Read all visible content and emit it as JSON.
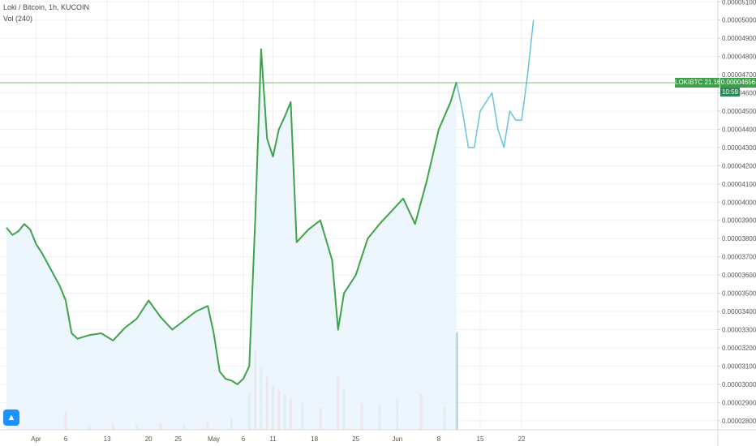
{
  "header": {
    "title": "Loki / Bitcoin, 1h, KUCOIN",
    "volume_label": "Vol (240)"
  },
  "price_badge": {
    "symbol": "LOKIBTC",
    "change": "21.16%",
    "price": "0.00004656",
    "countdown": "10:59"
  },
  "icons": {
    "logo": "tradingview-logo-icon"
  },
  "colors": {
    "price_line": "#3ea34a",
    "forecast_line": "#67c4da",
    "area_fill": "#eaf4fb",
    "grid": "#eef0f3",
    "vol_up": "#63bfa8",
    "vol_down": "#ef7a78",
    "badge_bg": "#3e9f49"
  },
  "chart_data": {
    "type": "line",
    "title": "Loki / Bitcoin, 1h, KUCOIN",
    "xlabel": "",
    "ylabel": "",
    "ylim": [
      2.75e-05,
      5.11e-05
    ],
    "x_ticks": [
      "Apr",
      "6",
      "13",
      "20",
      "25",
      "May",
      "6",
      "11",
      "18",
      "25",
      "Jun",
      "8",
      "15",
      "22"
    ],
    "y_ticks": [
      "0.00005100",
      "0.00005000",
      "0.00004900",
      "0.00004800",
      "0.00004700",
      "0.00004600",
      "0.00004500",
      "0.00004400",
      "0.00004300",
      "0.00004200",
      "0.00004100",
      "0.00004000",
      "0.00003900",
      "0.00003800",
      "0.00003700",
      "0.00003600",
      "0.00003500",
      "0.00003400",
      "0.00003300",
      "0.00003200",
      "0.00003100",
      "0.00003000",
      "0.00002900",
      "0.00002800"
    ],
    "last_price": 4.656e-05,
    "series": [
      {
        "name": "",
        "x": [
          "Mar 27",
          "Mar 28",
          "Mar 29",
          "Mar 30",
          "Mar 31",
          "Apr 1",
          "Apr 2",
          "Apr 3",
          "Apr 4",
          "Apr 5",
          "Apr 6",
          "Apr 7",
          "Apr 8",
          "Apr 10",
          "Apr 12",
          "Apr 14",
          "Apr 16",
          "Apr 18",
          "Apr 20",
          "Apr 22",
          "Apr 24",
          "Apr 26",
          "Apr 28",
          "Apr 30",
          "May 1",
          "May 2",
          "May 3",
          "May 4",
          "May 5",
          "May 6",
          "May 7",
          "May 8",
          "May 9",
          "May 10",
          "May 11",
          "May 12",
          "May 13",
          "May 14",
          "May 15",
          "May 17",
          "May 19",
          "May 21",
          "May 22",
          "May 23",
          "May 25",
          "May 27",
          "May 29",
          "May 31",
          "Jun 2",
          "Jun 4",
          "Jun 6",
          "Jun 8",
          "Jun 10",
          "Jun 11"
        ],
        "y": [
          3.86e-05,
          3.82e-05,
          3.84e-05,
          3.88e-05,
          3.85e-05,
          3.77e-05,
          3.72e-05,
          3.66e-05,
          3.6e-05,
          3.54e-05,
          3.46e-05,
          3.28e-05,
          3.25e-05,
          3.27e-05,
          3.28e-05,
          3.24e-05,
          3.31e-05,
          3.36e-05,
          3.46e-05,
          3.37e-05,
          3.3e-05,
          3.35e-05,
          3.4e-05,
          3.43e-05,
          3.28e-05,
          3.07e-05,
          3.03e-05,
          3.02e-05,
          3e-05,
          3.03e-05,
          3.1e-05,
          3.9e-05,
          4.84e-05,
          4.35e-05,
          4.25e-05,
          4.4e-05,
          4.47e-05,
          4.55e-05,
          3.78e-05,
          3.85e-05,
          3.9e-05,
          3.68e-05,
          3.3e-05,
          3.5e-05,
          3.6e-05,
          3.8e-05,
          3.88e-05,
          3.95e-05,
          4.02e-05,
          3.88e-05,
          4.12e-05,
          4.4e-05,
          4.55e-05,
          4.66e-05
        ]
      },
      {
        "name": "",
        "x": [
          "Jun 11",
          "Jun 12",
          "Jun 13",
          "Jun 14",
          "Jun 15",
          "Jun 17",
          "Jun 18",
          "Jun 19",
          "Jun 20",
          "Jun 21",
          "Jun 22",
          "Jun 23",
          "Jun 24"
        ],
        "y": [
          4.66e-05,
          4.5e-05,
          4.3e-05,
          4.3e-05,
          4.5e-05,
          4.6e-05,
          4.4e-05,
          4.3e-05,
          4.5e-05,
          4.45e-05,
          4.45e-05,
          4.7e-05,
          5e-05
        ]
      }
    ],
    "volume": {
      "x": [
        "Apr 6",
        "Apr 10",
        "Apr 14",
        "Apr 18",
        "Apr 22",
        "Apr 26",
        "Apr 30",
        "May 4",
        "May 7",
        "May 8",
        "May 9",
        "May 10",
        "May 11",
        "May 12",
        "May 13",
        "May 14",
        "May 16",
        "May 19",
        "May 22",
        "May 23",
        "May 26",
        "May 29",
        "Jun 1",
        "Jun 5",
        "Jun 9",
        "Jun 11"
      ],
      "values": [
        20,
        5,
        6,
        5,
        7,
        6,
        8,
        12,
        40,
        90,
        70,
        60,
        50,
        45,
        40,
        35,
        30,
        25,
        60,
        45,
        30,
        28,
        35,
        40,
        25,
        110
      ],
      "colors": [
        "down",
        "up",
        "down",
        "up",
        "down",
        "up",
        "down",
        "up",
        "up",
        "down",
        "up",
        "down",
        "up",
        "down",
        "up",
        "down",
        "up",
        "down",
        "down",
        "up",
        "down",
        "up",
        "up",
        "down",
        "up",
        "up"
      ]
    }
  }
}
